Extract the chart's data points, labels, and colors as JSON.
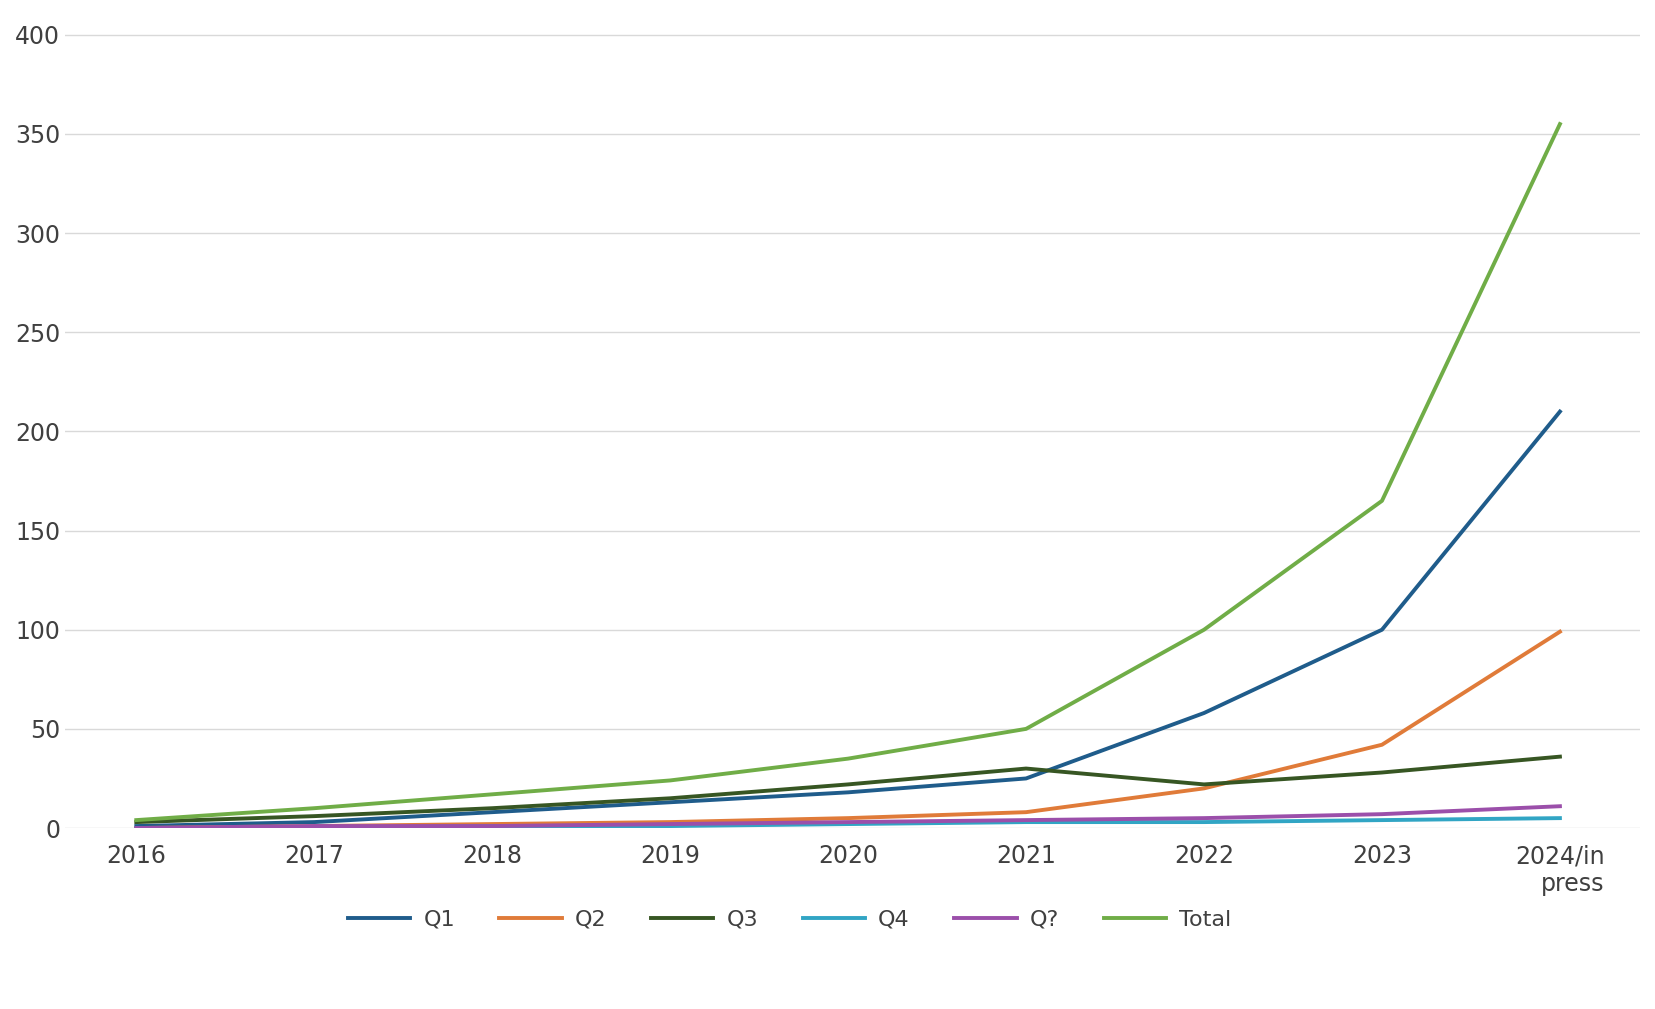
{
  "x_labels": [
    "2016",
    "2017",
    "2018",
    "2019",
    "2020",
    "2021",
    "2022",
    "2023",
    "2024/in\npress"
  ],
  "x_values": [
    0,
    1,
    2,
    3,
    4,
    5,
    6,
    7,
    8
  ],
  "series": {
    "Q1": {
      "values": [
        1,
        3,
        8,
        13,
        18,
        25,
        58,
        100,
        210
      ],
      "color": "#1f5c8b",
      "linewidth": 2.8
    },
    "Q2": {
      "values": [
        0,
        1,
        2,
        3,
        5,
        8,
        20,
        42,
        99
      ],
      "color": "#e07b39",
      "linewidth": 2.8
    },
    "Q3": {
      "values": [
        3,
        6,
        10,
        15,
        22,
        30,
        22,
        28,
        36
      ],
      "color": "#375623",
      "linewidth": 2.8
    },
    "Q4": {
      "values": [
        0,
        0,
        1,
        1,
        2,
        3,
        3,
        4,
        5
      ],
      "color": "#31a5c4",
      "linewidth": 2.8
    },
    "Q?": {
      "values": [
        0,
        1,
        1,
        2,
        3,
        4,
        5,
        7,
        11
      ],
      "color": "#9b4faa",
      "linewidth": 2.8
    },
    "Total": {
      "values": [
        4,
        10,
        17,
        24,
        35,
        50,
        100,
        165,
        355
      ],
      "color": "#70ad47",
      "linewidth": 2.8
    }
  },
  "ylim": [
    0,
    410
  ],
  "yticks": [
    0,
    50,
    100,
    150,
    200,
    250,
    300,
    350,
    400
  ],
  "background_color": "#ffffff",
  "grid_color": "#d9d9d9",
  "legend_order": [
    "Q1",
    "Q2",
    "Q3",
    "Q4",
    "Q?",
    "Total"
  ],
  "tick_fontsize": 17,
  "legend_fontsize": 16,
  "tick_color": "#404040"
}
